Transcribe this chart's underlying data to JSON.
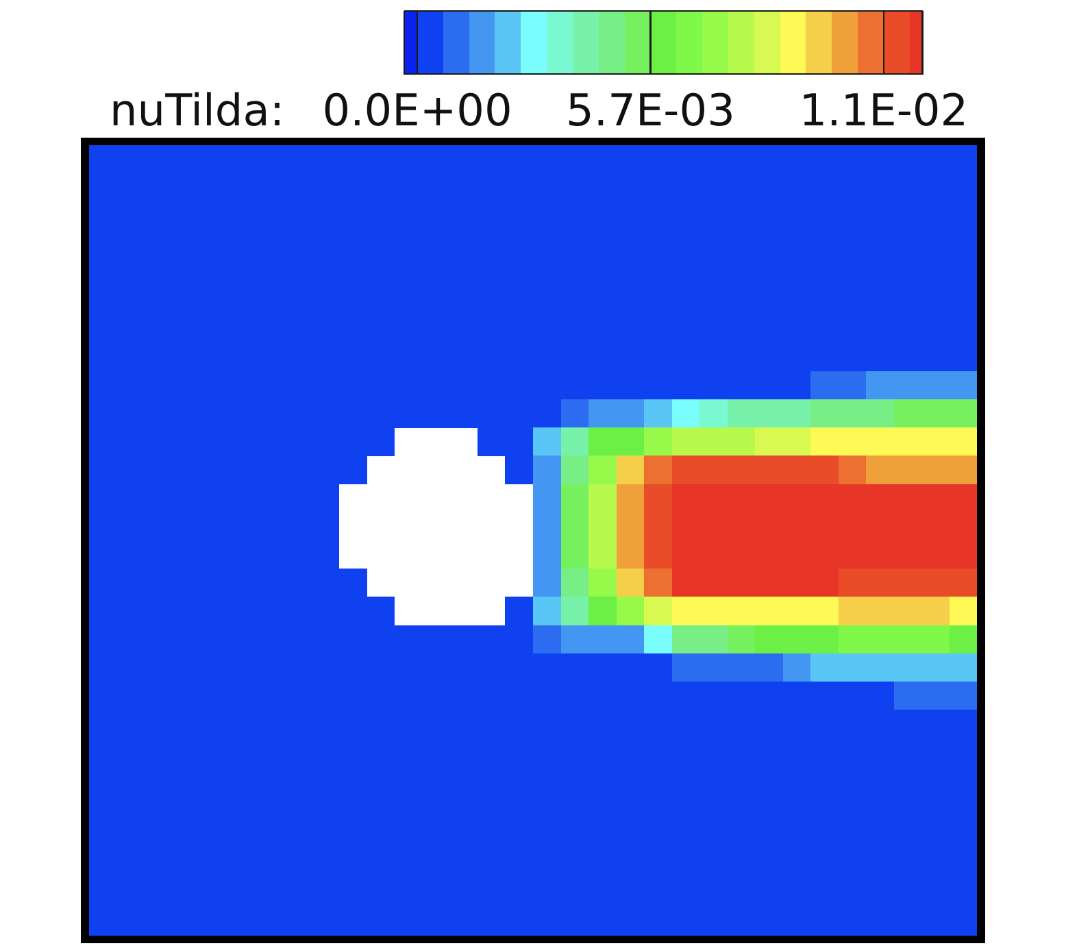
{
  "chart_data": {
    "type": "heatmap",
    "clabel": "nuTilda:",
    "categories": [
      null,
      null,
      null,
      null,
      null,
      null,
      null,
      null,
      null,
      null,
      null,
      null,
      null,
      null,
      null,
      null,
      null,
      null,
      null,
      null,
      null,
      null,
      null,
      null,
      null,
      null,
      null,
      null,
      null,
      null,
      null,
      null
    ],
    "y_categories": [
      null,
      null,
      null,
      null,
      null,
      null,
      null,
      null,
      null,
      null,
      null,
      null,
      null,
      null,
      null,
      null,
      null,
      null,
      null,
      null,
      null,
      null,
      null,
      null,
      null,
      null,
      null,
      null
    ],
    "clim": [
      -0.00032,
      0.01235
    ],
    "cticks": [
      {
        "value": 0,
        "label": "0.0E+00"
      },
      {
        "value": 0.0057,
        "label": "5.7E-03"
      },
      {
        "value": 0.0114,
        "label": "1.1E-02"
      }
    ],
    "tick_labels": false,
    "cells": [
      [
        0.0003,
        0.0003,
        0.0003,
        0.0003,
        0.0003,
        0.0003,
        0.0003,
        0.0003,
        0.0003,
        0.0003,
        0.0003,
        0.0003,
        0.0003,
        0.0003,
        0.0003,
        0.0003,
        0.0003,
        0.0003,
        0.0003,
        0.0003,
        0.0003,
        0.0003,
        0.0003,
        0.0003,
        0.0003,
        0.0003,
        0.0003,
        0.0003,
        0.0003,
        0.0003,
        0.0003,
        0.0003
      ],
      [
        0.0003,
        0.0003,
        0.0003,
        0.0003,
        0.0003,
        0.0003,
        0.0003,
        0.0003,
        0.0003,
        0.0003,
        0.0003,
        0.0003,
        0.0003,
        0.0003,
        0.0003,
        0.0003,
        0.0003,
        0.0003,
        0.0003,
        0.0003,
        0.0003,
        0.0003,
        0.0003,
        0.0003,
        0.0003,
        0.0003,
        0.0003,
        0.0003,
        0.0003,
        0.0003,
        0.0003,
        0.0003
      ],
      [
        0.0003,
        0.0003,
        0.0003,
        0.0003,
        0.0003,
        0.0003,
        0.0003,
        0.0003,
        0.0003,
        0.0003,
        0.0003,
        0.0003,
        0.0003,
        0.0003,
        0.0003,
        0.0003,
        0.0003,
        0.0003,
        0.0003,
        0.0003,
        0.0003,
        0.0003,
        0.0003,
        0.0003,
        0.0003,
        0.0003,
        0.0003,
        0.0003,
        0.0003,
        0.0003,
        0.0003,
        0.0003
      ],
      [
        0.0003,
        0.0003,
        0.0003,
        0.0003,
        0.0003,
        0.0003,
        0.0003,
        0.0003,
        0.0003,
        0.0003,
        0.0003,
        0.0003,
        0.0003,
        0.0003,
        0.0003,
        0.0003,
        0.0003,
        0.0003,
        0.0003,
        0.0003,
        0.0003,
        0.0003,
        0.0003,
        0.0003,
        0.0003,
        0.0003,
        0.0003,
        0.0003,
        0.0003,
        0.0003,
        0.0003,
        0.0003
      ],
      [
        0.0003,
        0.0003,
        0.0003,
        0.0003,
        0.0003,
        0.0003,
        0.0003,
        0.0003,
        0.0003,
        0.0003,
        0.0003,
        0.0003,
        0.0003,
        0.0003,
        0.0003,
        0.0003,
        0.0003,
        0.0003,
        0.0003,
        0.0003,
        0.0003,
        0.0003,
        0.0003,
        0.0003,
        0.0003,
        0.0003,
        0.0003,
        0.0003,
        0.0003,
        0.0003,
        0.0003,
        0.0003
      ],
      [
        0.0003,
        0.0003,
        0.0003,
        0.0003,
        0.0003,
        0.0003,
        0.0003,
        0.0003,
        0.0003,
        0.0003,
        0.0003,
        0.0003,
        0.0003,
        0.0003,
        0.0003,
        0.0003,
        0.0003,
        0.0003,
        0.0003,
        0.0003,
        0.0003,
        0.0003,
        0.0003,
        0.0003,
        0.0003,
        0.0003,
        0.0003,
        0.0003,
        0.0003,
        0.0003,
        0.0003,
        0.0003
      ],
      [
        0.0003,
        0.0003,
        0.0003,
        0.0003,
        0.0003,
        0.0003,
        0.0003,
        0.0003,
        0.0003,
        0.0003,
        0.0003,
        0.0003,
        0.0003,
        0.0003,
        0.0003,
        0.0003,
        0.0003,
        0.0003,
        0.0003,
        0.0003,
        0.0003,
        0.0003,
        0.0003,
        0.0003,
        0.0003,
        0.0003,
        0.0003,
        0.0003,
        0.0003,
        0.0003,
        0.0003,
        0.0003
      ],
      [
        0.0003,
        0.0003,
        0.0003,
        0.0003,
        0.0003,
        0.0003,
        0.0003,
        0.0003,
        0.0003,
        0.0003,
        0.0003,
        0.0003,
        0.0003,
        0.0003,
        0.0003,
        0.0003,
        0.0003,
        0.0003,
        0.0003,
        0.0003,
        0.0003,
        0.0003,
        0.0003,
        0.0003,
        0.0003,
        0.0003,
        0.0003,
        0.0003,
        0.0003,
        0.0003,
        0.0003,
        0.0003
      ],
      [
        0.0003,
        0.0003,
        0.0003,
        0.0003,
        0.0003,
        0.0003,
        0.0003,
        0.0003,
        0.0003,
        0.0003,
        0.0003,
        0.0003,
        0.0003,
        0.0003,
        0.0003,
        0.0003,
        0.0003,
        0.0003,
        0.0003,
        0.0003,
        0.0003,
        0.0003,
        0.0003,
        0.0003,
        0.0003,
        0.0003,
        0.0009,
        0.0012,
        0.0013,
        0.0016,
        0.0016,
        0.0016
      ],
      [
        0.0003,
        0.0003,
        0.0003,
        0.0003,
        0.0003,
        0.0003,
        0.0003,
        0.0003,
        0.0003,
        0.0003,
        0.0003,
        0.0003,
        0.0003,
        0.0003,
        0.0003,
        0.0003,
        0.0003,
        0.0009,
        0.0013,
        0.0016,
        0.0022,
        0.0029,
        0.0035,
        0.0038,
        0.0041,
        0.0044,
        0.0047,
        0.005,
        0.005,
        0.0052,
        0.0052,
        0.0052
      ],
      [
        0.0003,
        0.0003,
        0.0003,
        0.0003,
        0.0003,
        0.0003,
        0.0003,
        0.0003,
        0.0003,
        0.0003,
        0.0003,
        null,
        null,
        null,
        0.0003,
        0.0003,
        0.0022,
        0.0041,
        0.0057,
        0.0063,
        0.007,
        0.0076,
        0.0079,
        0.0082,
        0.0085,
        0.0088,
        0.009,
        0.0092,
        0.0092,
        0.0092,
        0.0092,
        0.0092
      ],
      [
        0.0003,
        0.0003,
        0.0003,
        0.0003,
        0.0003,
        0.0003,
        0.0003,
        0.0003,
        0.0003,
        0.0003,
        null,
        null,
        null,
        null,
        null,
        0.0003,
        0.0016,
        0.005,
        0.0073,
        0.0098,
        0.0111,
        0.0117,
        0.0117,
        0.0117,
        0.0117,
        0.0117,
        0.0114,
        0.0111,
        0.0107,
        0.0104,
        0.0104,
        0.0104
      ],
      [
        0.0003,
        0.0003,
        0.0003,
        0.0003,
        0.0003,
        0.0003,
        0.0003,
        0.0003,
        0.0003,
        null,
        null,
        null,
        null,
        null,
        null,
        null,
        0.0016,
        0.0054,
        0.0079,
        0.0104,
        0.0117,
        0.0122,
        0.0122,
        0.0122,
        0.0122,
        0.0122,
        0.0122,
        0.0122,
        0.0122,
        0.0122,
        0.0122,
        0.0122
      ],
      [
        0.0003,
        0.0003,
        0.0003,
        0.0003,
        0.0003,
        0.0003,
        0.0003,
        0.0003,
        0.0003,
        null,
        null,
        null,
        null,
        null,
        null,
        null,
        0.0016,
        0.0054,
        0.0082,
        0.0104,
        0.0117,
        0.0122,
        0.0122,
        0.0122,
        0.0122,
        0.0122,
        0.0122,
        0.0122,
        0.0122,
        0.0122,
        0.0122,
        0.0122
      ],
      [
        0.0003,
        0.0003,
        0.0003,
        0.0003,
        0.0003,
        0.0003,
        0.0003,
        0.0003,
        0.0003,
        null,
        null,
        null,
        null,
        null,
        null,
        null,
        0.0016,
        0.0054,
        0.0079,
        0.0104,
        0.0117,
        0.0122,
        0.0122,
        0.0122,
        0.0122,
        0.0122,
        0.0122,
        0.0122,
        0.0122,
        0.0122,
        0.0122,
        0.0122
      ],
      [
        0.0003,
        0.0003,
        0.0003,
        0.0003,
        0.0003,
        0.0003,
        0.0003,
        0.0003,
        0.0003,
        0.0003,
        null,
        null,
        null,
        null,
        null,
        null,
        0.0016,
        0.005,
        0.0073,
        0.0098,
        0.0111,
        0.0122,
        0.0122,
        0.0122,
        0.0122,
        0.0122,
        0.0122,
        0.0117,
        0.0117,
        0.0114,
        0.0114,
        0.0114
      ],
      [
        0.0003,
        0.0003,
        0.0003,
        0.0003,
        0.0003,
        0.0003,
        0.0003,
        0.0003,
        0.0003,
        0.0003,
        0.0003,
        null,
        null,
        null,
        null,
        0.0003,
        0.002,
        0.0041,
        0.006,
        0.0073,
        0.0085,
        0.009,
        0.0092,
        0.0092,
        0.0092,
        0.0092,
        0.0092,
        0.0095,
        0.0095,
        0.0095,
        0.0095,
        0.0092
      ],
      [
        0.0003,
        0.0003,
        0.0003,
        0.0003,
        0.0003,
        0.0003,
        0.0003,
        0.0003,
        0.0003,
        0.0003,
        0.0003,
        0.0003,
        0.0003,
        0.0003,
        0.0003,
        0.0003,
        0.0009,
        0.0013,
        0.0013,
        0.0016,
        0.0029,
        0.005,
        0.005,
        0.0054,
        0.006,
        0.0063,
        0.0063,
        0.0066,
        0.0066,
        0.0066,
        0.0066,
        0.0063
      ],
      [
        0.0003,
        0.0003,
        0.0003,
        0.0003,
        0.0003,
        0.0003,
        0.0003,
        0.0003,
        0.0003,
        0.0003,
        0.0003,
        0.0003,
        0.0003,
        0.0003,
        0.0003,
        0.0003,
        0.0003,
        0.0003,
        0.0003,
        0.0003,
        0.0003,
        0.0009,
        0.0009,
        0.0012,
        0.0012,
        0.0016,
        0.0019,
        0.0022,
        0.0025,
        0.0025,
        0.0025,
        0.0019
      ],
      [
        0.0003,
        0.0003,
        0.0003,
        0.0003,
        0.0003,
        0.0003,
        0.0003,
        0.0003,
        0.0003,
        0.0003,
        0.0003,
        0.0003,
        0.0003,
        0.0003,
        0.0003,
        0.0003,
        0.0003,
        0.0003,
        0.0003,
        0.0003,
        0.0003,
        0.0003,
        0.0003,
        0.0003,
        0.0003,
        0.0003,
        0.0003,
        0.0003,
        0.0003,
        0.0009,
        0.0009,
        0.0009
      ],
      [
        0.0003,
        0.0003,
        0.0003,
        0.0003,
        0.0003,
        0.0003,
        0.0003,
        0.0003,
        0.0003,
        0.0003,
        0.0003,
        0.0003,
        0.0003,
        0.0003,
        0.0003,
        0.0003,
        0.0003,
        0.0003,
        0.0003,
        0.0003,
        0.0003,
        0.0003,
        0.0003,
        0.0003,
        0.0003,
        0.0003,
        0.0003,
        0.0003,
        0.0003,
        0.0003,
        0.0003,
        0.0003
      ],
      [
        0.0003,
        0.0003,
        0.0003,
        0.0003,
        0.0003,
        0.0003,
        0.0003,
        0.0003,
        0.0003,
        0.0003,
        0.0003,
        0.0003,
        0.0003,
        0.0003,
        0.0003,
        0.0003,
        0.0003,
        0.0003,
        0.0003,
        0.0003,
        0.0003,
        0.0003,
        0.0003,
        0.0003,
        0.0003,
        0.0003,
        0.0003,
        0.0003,
        0.0003,
        0.0003,
        0.0003,
        0.0003
      ],
      [
        0.0003,
        0.0003,
        0.0003,
        0.0003,
        0.0003,
        0.0003,
        0.0003,
        0.0003,
        0.0003,
        0.0003,
        0.0003,
        0.0003,
        0.0003,
        0.0003,
        0.0003,
        0.0003,
        0.0003,
        0.0003,
        0.0003,
        0.0003,
        0.0003,
        0.0003,
        0.0003,
        0.0003,
        0.0003,
        0.0003,
        0.0003,
        0.0003,
        0.0003,
        0.0003,
        0.0003,
        0.0003
      ],
      [
        0.0003,
        0.0003,
        0.0003,
        0.0003,
        0.0003,
        0.0003,
        0.0003,
        0.0003,
        0.0003,
        0.0003,
        0.0003,
        0.0003,
        0.0003,
        0.0003,
        0.0003,
        0.0003,
        0.0003,
        0.0003,
        0.0003,
        0.0003,
        0.0003,
        0.0003,
        0.0003,
        0.0003,
        0.0003,
        0.0003,
        0.0003,
        0.0003,
        0.0003,
        0.0003,
        0.0003,
        0.0003
      ],
      [
        0.0003,
        0.0003,
        0.0003,
        0.0003,
        0.0003,
        0.0003,
        0.0003,
        0.0003,
        0.0003,
        0.0003,
        0.0003,
        0.0003,
        0.0003,
        0.0003,
        0.0003,
        0.0003,
        0.0003,
        0.0003,
        0.0003,
        0.0003,
        0.0003,
        0.0003,
        0.0003,
        0.0003,
        0.0003,
        0.0003,
        0.0003,
        0.0003,
        0.0003,
        0.0003,
        0.0003,
        0.0003
      ],
      [
        0.0003,
        0.0003,
        0.0003,
        0.0003,
        0.0003,
        0.0003,
        0.0003,
        0.0003,
        0.0003,
        0.0003,
        0.0003,
        0.0003,
        0.0003,
        0.0003,
        0.0003,
        0.0003,
        0.0003,
        0.0003,
        0.0003,
        0.0003,
        0.0003,
        0.0003,
        0.0003,
        0.0003,
        0.0003,
        0.0003,
        0.0003,
        0.0003,
        0.0003,
        0.0003,
        0.0003,
        0.0003
      ],
      [
        0.0003,
        0.0003,
        0.0003,
        0.0003,
        0.0003,
        0.0003,
        0.0003,
        0.0003,
        0.0003,
        0.0003,
        0.0003,
        0.0003,
        0.0003,
        0.0003,
        0.0003,
        0.0003,
        0.0003,
        0.0003,
        0.0003,
        0.0003,
        0.0003,
        0.0003,
        0.0003,
        0.0003,
        0.0003,
        0.0003,
        0.0003,
        0.0003,
        0.0003,
        0.0003,
        0.0003,
        0.0003
      ],
      [
        0.0003,
        0.0003,
        0.0003,
        0.0003,
        0.0003,
        0.0003,
        0.0003,
        0.0003,
        0.0003,
        0.0003,
        0.0003,
        0.0003,
        0.0003,
        0.0003,
        0.0003,
        0.0003,
        0.0003,
        0.0003,
        0.0003,
        0.0003,
        0.0003,
        0.0003,
        0.0003,
        0.0003,
        0.0003,
        0.0003,
        0.0003,
        0.0003,
        0.0003,
        0.0003,
        0.0003,
        0.0003
      ]
    ]
  }
}
